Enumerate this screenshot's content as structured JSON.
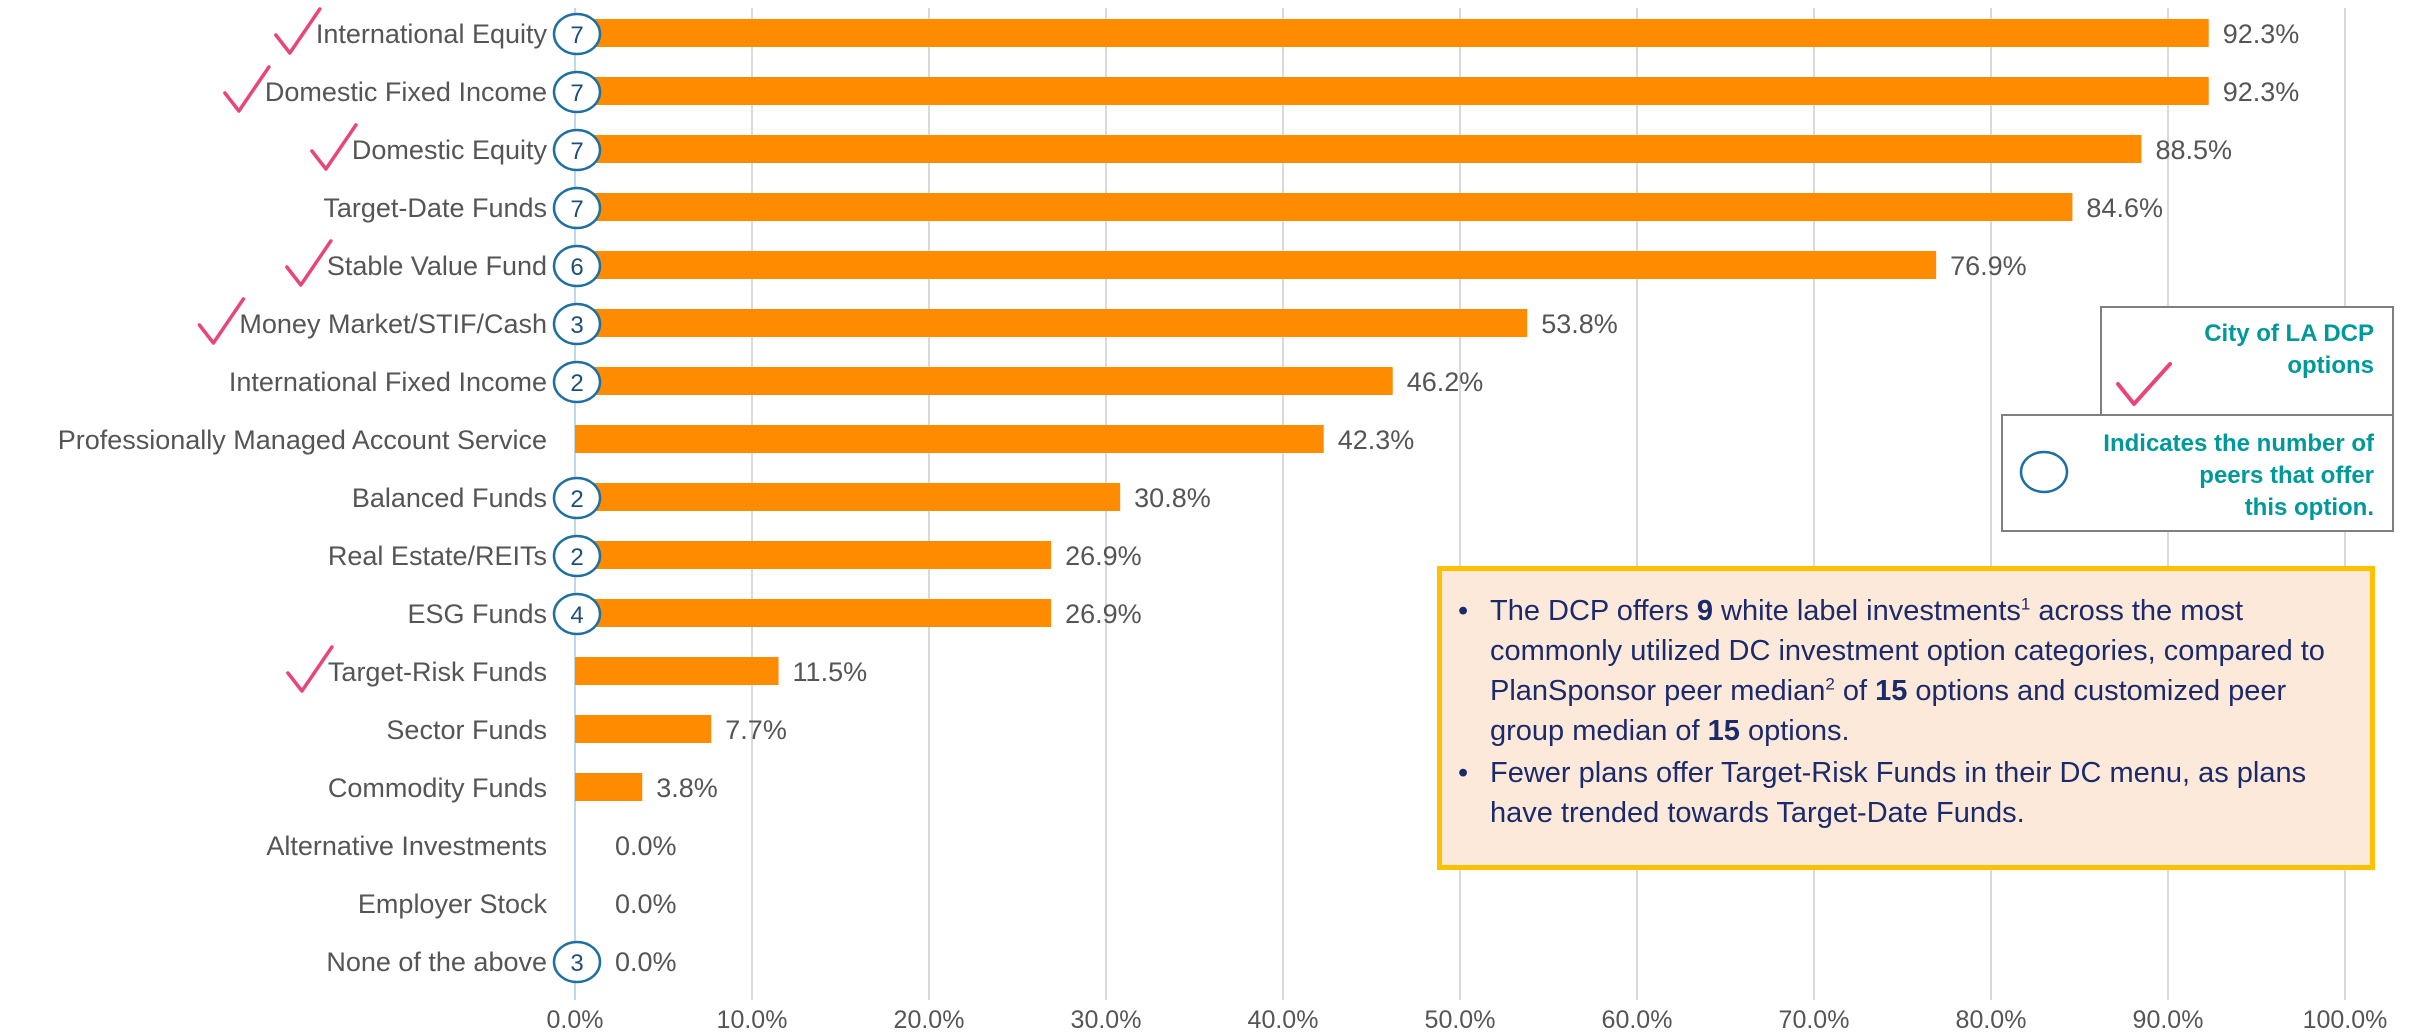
{
  "chart_data": {
    "type": "bar",
    "orientation": "horizontal",
    "categories": [
      "International Equity",
      "Domestic Fixed Income",
      "Domestic Equity",
      "Target-Date Funds",
      "Stable Value Fund",
      "Money Market/STIF/Cash",
      "International Fixed Income",
      "Professionally Managed Account Service",
      "Balanced Funds",
      "Real Estate/REITs",
      "ESG Funds",
      "Target-Risk Funds",
      "Sector Funds",
      "Commodity Funds",
      "Alternative Investments",
      "Employer Stock",
      "None of the above"
    ],
    "values": [
      92.3,
      92.3,
      88.5,
      84.6,
      76.9,
      53.8,
      46.2,
      42.3,
      30.8,
      26.9,
      26.9,
      11.5,
      7.7,
      3.8,
      0.0,
      0.0,
      0.0
    ],
    "value_labels": [
      "92.3%",
      "92.3%",
      "88.5%",
      "84.6%",
      "76.9%",
      "53.8%",
      "46.2%",
      "42.3%",
      "30.8%",
      "26.9%",
      "26.9%",
      "11.5%",
      "7.7%",
      "3.8%",
      "0.0%",
      "0.0%",
      "0.0%"
    ],
    "peer_counts": [
      "7",
      "7",
      "7",
      "7",
      "6",
      "3",
      "2",
      null,
      "2",
      "2",
      "4",
      null,
      null,
      null,
      null,
      null,
      "3"
    ],
    "city_la_dcp": [
      true,
      true,
      true,
      false,
      true,
      true,
      false,
      false,
      false,
      false,
      false,
      true,
      false,
      false,
      false,
      false,
      false
    ],
    "xlim": [
      0,
      100
    ],
    "xticks": [
      "0.0%",
      "10.0%",
      "20.0%",
      "30.0%",
      "40.0%",
      "50.0%",
      "60.0%",
      "70.0%",
      "80.0%",
      "90.0%",
      "100.0%"
    ],
    "grid": true,
    "title": "",
    "xlabel": "",
    "ylabel": ""
  },
  "colors": {
    "bar": "#ff8c00",
    "check": "#e8457a",
    "peer_circle": "#1f6f9f",
    "peer_text": "#1f4e79",
    "legend_text": "#009999",
    "note_text": "#1b2a6b",
    "note_bg": "#fce9d9",
    "note_border": "#ffc000",
    "grid": "#d9d9d9"
  },
  "legend": {
    "check_icon": "check-icon",
    "check_line1": "City of LA DCP",
    "check_line2": "options",
    "circle_icon": "circle-icon",
    "circle_line1": "Indicates the number of",
    "circle_line2": "peers that offer",
    "circle_line3": "this option."
  },
  "note": {
    "b1_pre": "The DCP offers ",
    "b1_num1": "9",
    "b1_mid1": " white label investments",
    "b1_sup1": "1",
    "b1_mid2": " across the most commonly utilized DC investment option categories, compared to PlanSponsor peer median",
    "b1_sup2": "2",
    "b1_mid3": " of ",
    "b1_num2": "15",
    "b1_mid4": " options and customized peer group median of ",
    "b1_num3": "15",
    "b1_end": " options.",
    "b2": "Fewer plans offer Target-Risk Funds in their DC menu, as plans have trended towards Target-Date Funds."
  }
}
